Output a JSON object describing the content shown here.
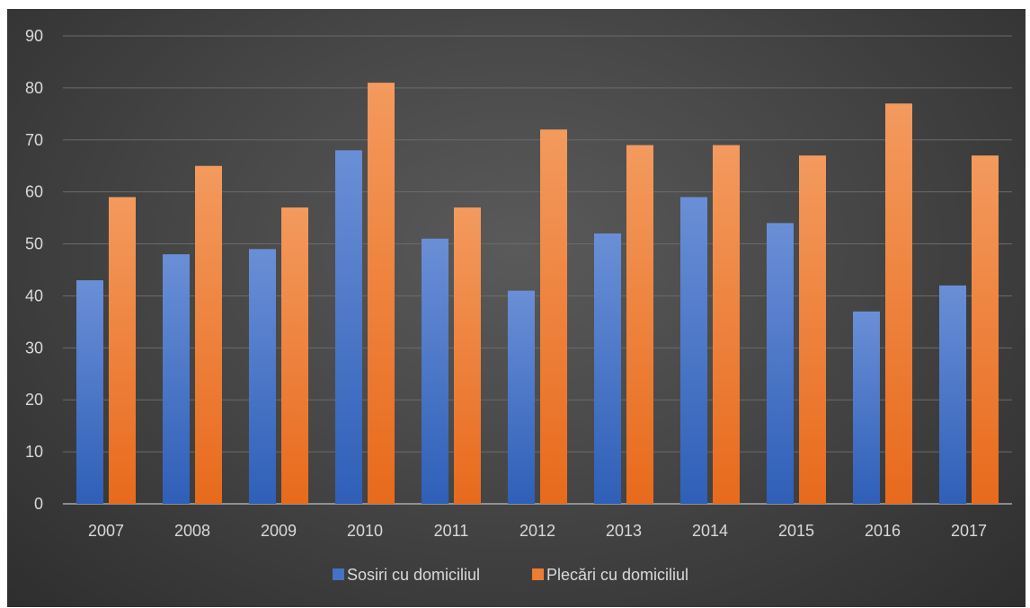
{
  "chart_data": {
    "type": "bar",
    "title": "",
    "xlabel": "",
    "ylabel": "",
    "categories": [
      "2007",
      "2008",
      "2009",
      "2010",
      "2011",
      "2012",
      "2013",
      "2014",
      "2015",
      "2016",
      "2017"
    ],
    "series": [
      {
        "name": "Sosiri cu domiciliul",
        "values": [
          43,
          48,
          49,
          68,
          51,
          41,
          52,
          59,
          54,
          37,
          42
        ],
        "color": "#4472c4"
      },
      {
        "name": "Plecări cu domiciliul",
        "values": [
          59,
          65,
          57,
          81,
          57,
          72,
          69,
          69,
          67,
          77,
          67
        ],
        "color": "#ed7d31"
      }
    ],
    "ylim": [
      0,
      90
    ],
    "yticks": [
      0,
      10,
      20,
      30,
      40,
      50,
      60,
      70,
      80,
      90
    ],
    "grid": true,
    "legend_position": "bottom"
  }
}
